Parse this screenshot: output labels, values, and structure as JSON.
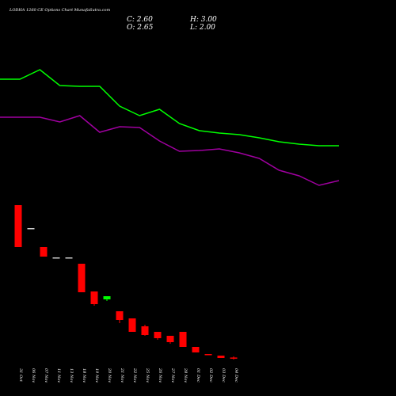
{
  "chart_data": {
    "type": "candlestick",
    "title": "LODHA 1260 CE Options Chart MunafaSutra.com",
    "ohlc_labels": [
      "C: 2.60",
      "H: 3.00",
      "O: 2.65",
      "L: 2.00"
    ],
    "categories": [
      "31 Oct",
      "06 Nov",
      "07 Nov",
      "11 Nov",
      "13 Nov",
      "18 Nov",
      "19 Nov",
      "20 Nov",
      "21 Nov",
      "22 Nov",
      "25 Nov",
      "26 Nov",
      "27 Nov",
      "28 Nov",
      "01 Dec",
      "02 Dec",
      "03 Dec",
      "04 Dec"
    ],
    "open": [
      50.75,
      43.5,
      37.5,
      34.25,
      34.25,
      32.25,
      23.5,
      21,
      17.25,
      15,
      12.5,
      10.75,
      9.5,
      10.75,
      6,
      3.75,
      3.25,
      2.65
    ],
    "high": [
      50.75,
      43.5,
      37.5,
      34.25,
      34.25,
      32.25,
      23.5,
      22,
      17.25,
      15,
      13,
      10.75,
      9.5,
      10.75,
      6,
      3.75,
      3.25,
      3.0
    ],
    "low": [
      37.5,
      43.5,
      34.5,
      34.25,
      34.25,
      23.25,
      19,
      20.5,
      13.5,
      10.75,
      9.5,
      8.25,
      7,
      6,
      4.25,
      3.5,
      2.5,
      2.0
    ],
    "close": [
      37.5,
      43.5,
      34.5,
      34.25,
      34.25,
      23.25,
      19.5,
      22,
      14.5,
      10.75,
      9.75,
      8.75,
      7.5,
      6,
      4.25,
      3.5,
      2.5,
      2.6
    ],
    "up_color": "#00ff00",
    "down_color": "#ff0000",
    "ylim": [
      0,
      53
    ],
    "y2lim": [
      0,
      75
    ],
    "series": [
      {
        "color": "#00ff00",
        "axis": "y2",
        "values": [
          50,
          50,
          53,
          48,
          47.75,
          47.75,
          41.5,
          38.5,
          40.5,
          36,
          33.75,
          33,
          32.5,
          31.5,
          30.25,
          29.5,
          29,
          29
        ]
      },
      {
        "color": "#a000a0",
        "axis": "y2",
        "values": [
          38,
          38,
          38,
          36.5,
          38.5,
          33.25,
          35,
          34.75,
          30.5,
          27.25,
          27.5,
          28,
          26.75,
          25,
          21.25,
          19.5,
          16.5,
          18
        ]
      }
    ]
  }
}
